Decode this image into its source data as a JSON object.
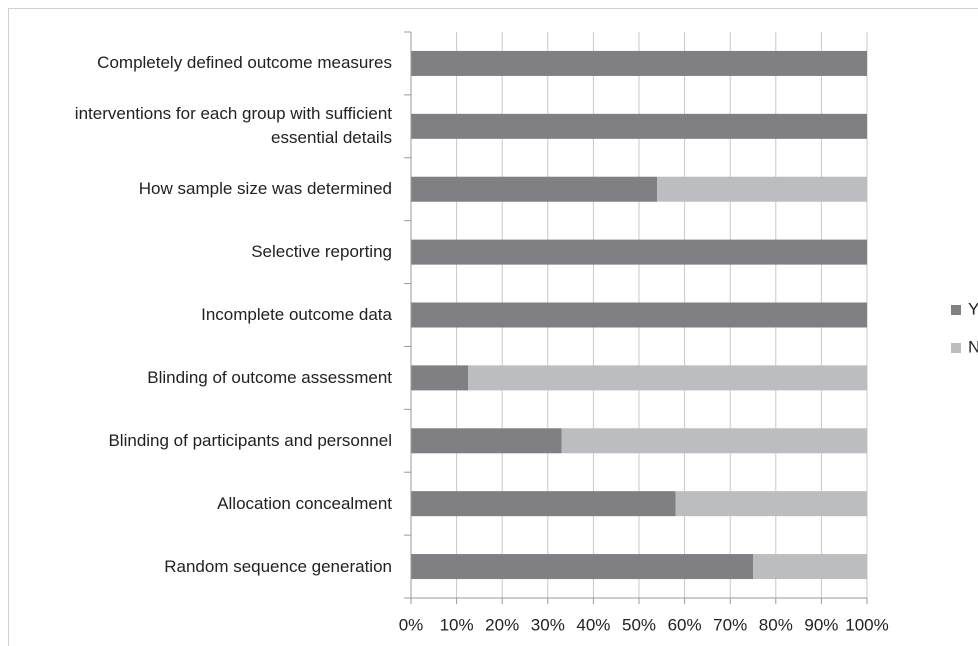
{
  "chart_data": {
    "type": "stacked-bar-horizontal",
    "categories": [
      "Completely defined outcome measures",
      "interventions for each group with sufficient essential details",
      "How sample size was determined",
      "Selective reporting",
      "Incomplete outcome data",
      "Blinding of outcome assessment",
      "Blinding of participants and personnel",
      "Allocation concealment",
      "Random sequence generation"
    ],
    "series": [
      {
        "name": "Yes",
        "color": "#7f7f84",
        "values": [
          100,
          100,
          54,
          100,
          100,
          12.5,
          33,
          58,
          75
        ]
      },
      {
        "name": "No",
        "color": "#bcbdc0",
        "values": [
          0,
          0,
          46,
          0,
          0,
          87.5,
          67,
          42,
          25
        ]
      }
    ],
    "xlim": [
      0,
      100
    ],
    "xticks": [
      {
        "value": 0,
        "label": "0%"
      },
      {
        "value": 10,
        "label": "10%"
      },
      {
        "value": 20,
        "label": "20%"
      },
      {
        "value": 30,
        "label": "30%"
      },
      {
        "value": 40,
        "label": "40%"
      },
      {
        "value": 50,
        "label": "50%"
      },
      {
        "value": 60,
        "label": "60%"
      },
      {
        "value": 70,
        "label": "70%"
      },
      {
        "value": 80,
        "label": "80%"
      },
      {
        "value": 90,
        "label": "90%"
      },
      {
        "value": 100,
        "label": "100%"
      }
    ],
    "grid": true,
    "legend": "right"
  }
}
